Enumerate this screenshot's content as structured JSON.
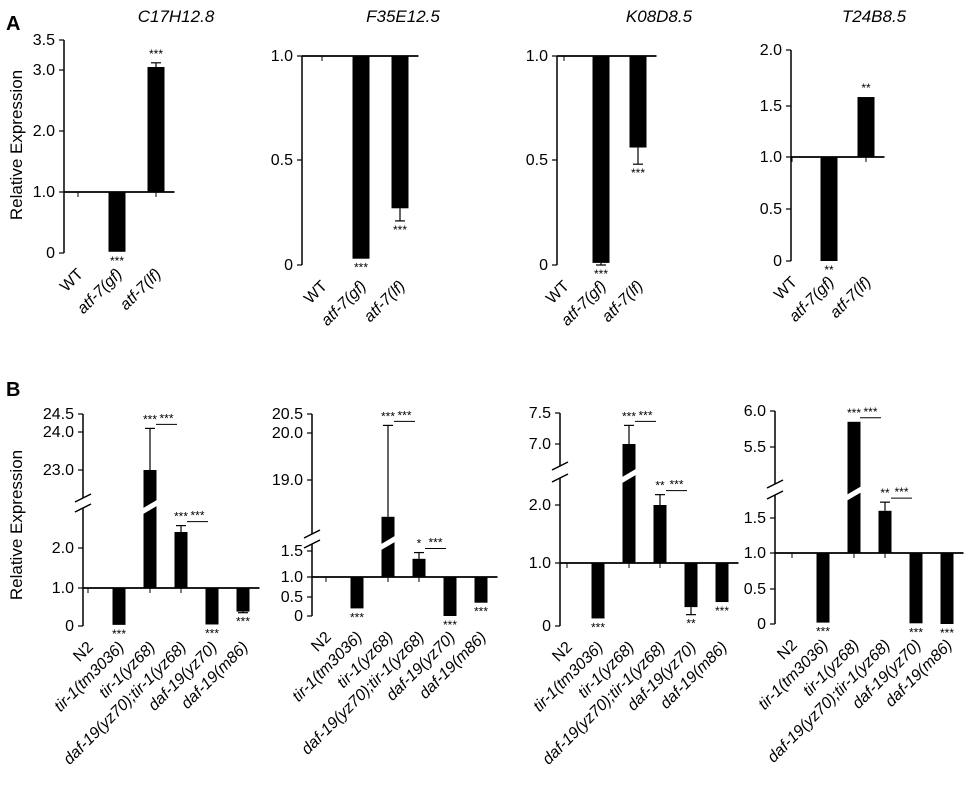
{
  "panel_labels": {
    "a": "A",
    "b": "B"
  },
  "ylabel": "Relative Expression",
  "chart_data": [
    {
      "panel": "A",
      "type": "bar",
      "title": "C17H12.8",
      "baseline": 1,
      "ylabel": "Relative Expression",
      "yticks": [
        "0",
        "1.0",
        "2.0",
        "3.0",
        "3.5"
      ],
      "categories": [
        "WT",
        "atf-7(gf)",
        "atf-7(lf)"
      ],
      "values": [
        1.0,
        0.02,
        3.05
      ],
      "errors": [
        0,
        0,
        0.07
      ],
      "significance": [
        "",
        "***",
        "***"
      ],
      "brackets": []
    },
    {
      "panel": "A",
      "type": "bar",
      "title": "F35E12.5",
      "baseline": 1,
      "yticks": [
        "0",
        "0.5",
        "1.0"
      ],
      "categories": [
        "WT",
        "atf-7(gf)",
        "atf-7(lf)"
      ],
      "values": [
        1.0,
        0.03,
        0.27
      ],
      "errors": [
        0,
        0,
        0.06
      ],
      "significance": [
        "",
        "***",
        "***"
      ],
      "brackets": []
    },
    {
      "panel": "A",
      "type": "bar",
      "title": "K08D8.5",
      "baseline": 1,
      "yticks": [
        "0",
        "0.5",
        "1.0"
      ],
      "categories": [
        "WT",
        "atf-7(gf)",
        "atf-7(lf)"
      ],
      "values": [
        1.0,
        0.01,
        0.56
      ],
      "errors": [
        0,
        0.01,
        0.08
      ],
      "significance": [
        "",
        "***",
        "***"
      ],
      "brackets": []
    },
    {
      "panel": "A",
      "type": "bar",
      "title": "T24B8.5",
      "baseline": 1,
      "yticks": [
        "0",
        "0.5",
        "1.0",
        "1.5",
        "2.0"
      ],
      "categories": [
        "WT",
        "atf-7(gf)",
        "atf-7(lf)"
      ],
      "values": [
        1.0,
        0.0,
        1.58
      ],
      "errors": [
        0,
        0,
        0
      ],
      "significance": [
        "",
        "**",
        "**"
      ],
      "brackets": []
    },
    {
      "panel": "B",
      "type": "bar",
      "baseline": 1,
      "ylabel": "Relative Expression",
      "yticks": [
        "0",
        "1.0",
        "2.0",
        "23.0",
        "24.0",
        "24.5"
      ],
      "categories": [
        "N2",
        "tir-1(tm3036)",
        "tir-1(yz68)",
        "daf-19(yz70);tir-1(yz68)",
        "daf-19(yz70)",
        "daf-19(m86)"
      ],
      "values": [
        1.0,
        0.03,
        23.0,
        2.2,
        0.04,
        0.38
      ],
      "errors": [
        0,
        0,
        1.1,
        0.08,
        0,
        0.03
      ],
      "significance": [
        "",
        "***",
        "***",
        "***",
        "***",
        "***"
      ],
      "brackets": [
        {
          "from": 2,
          "to": 3,
          "label": "***"
        },
        {
          "from": 3,
          "to": 4,
          "label": "***"
        }
      ]
    },
    {
      "panel": "B",
      "type": "bar",
      "baseline": 1,
      "yticks": [
        "0",
        "0.5",
        "1.0",
        "1.5",
        "19.0",
        "20.0",
        "20.5"
      ],
      "categories": [
        "N2",
        "tir-1(tm3036)",
        "tir-1(yz68)",
        "daf-19(yz70);tir-1(yz68)",
        "daf-19(yz70)",
        "daf-19(m86)"
      ],
      "values": [
        1.0,
        0.2,
        18.6,
        1.35,
        0.0,
        0.35
      ],
      "errors": [
        0,
        0,
        1.6,
        0.12,
        0,
        0
      ],
      "significance": [
        "",
        "***",
        "***",
        "*",
        "***",
        "***"
      ],
      "brackets": [
        {
          "from": 2,
          "to": 3,
          "label": "***"
        },
        {
          "from": 3,
          "to": 4,
          "label": "***"
        }
      ]
    },
    {
      "panel": "B",
      "type": "bar",
      "baseline": 1,
      "yticks": [
        "0",
        "1.0",
        "2.0",
        "7.0",
        "7.5"
      ],
      "categories": [
        "N2",
        "tir-1(tm3036)",
        "tir-1(yz68)",
        "daf-19(yz70);tir-1(yz68)",
        "daf-19(yz70)",
        "daf-19(m86)"
      ],
      "values": [
        1.0,
        0.12,
        7.0,
        2.0,
        0.3,
        0.38
      ],
      "errors": [
        0,
        0,
        0.3,
        0.18,
        0.12,
        0
      ],
      "significance": [
        "",
        "***",
        "***",
        "**",
        "**",
        "***"
      ],
      "brackets": [
        {
          "from": 2,
          "to": 3,
          "label": "***"
        },
        {
          "from": 3,
          "to": 4,
          "label": "***"
        }
      ]
    },
    {
      "panel": "B",
      "type": "bar",
      "baseline": 1,
      "yticks": [
        "0",
        "0.5",
        "1.0",
        "1.5",
        "5.5",
        "6.0"
      ],
      "categories": [
        "N2",
        "tir-1(tm3036)",
        "tir-1(yz68)",
        "daf-19(yz70);tir-1(yz68)",
        "daf-19(yz70)",
        "daf-19(m86)"
      ],
      "values": [
        1.0,
        0.02,
        5.85,
        1.6,
        0.01,
        0.0
      ],
      "errors": [
        0,
        0,
        0,
        0.12,
        0,
        0
      ],
      "significance": [
        "",
        "***",
        "***",
        "**",
        "***",
        "***"
      ],
      "brackets": [
        {
          "from": 2,
          "to": 3,
          "label": "***"
        },
        {
          "from": 3,
          "to": 4,
          "label": "***"
        }
      ]
    }
  ]
}
